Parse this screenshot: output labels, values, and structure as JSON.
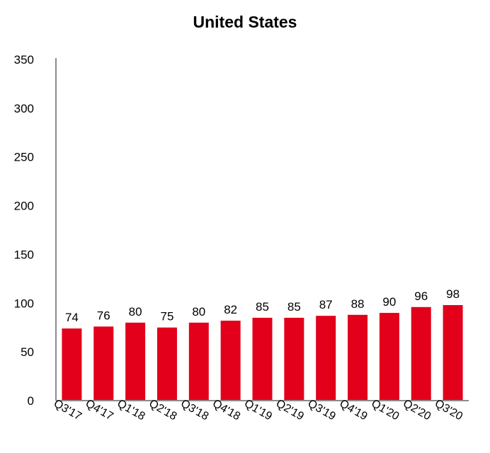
{
  "chart_data": {
    "type": "bar",
    "title": "United States",
    "xlabel": "",
    "ylabel": "",
    "categories": [
      "Q3'17",
      "Q4'17",
      "Q1'18",
      "Q2'18",
      "Q3'18",
      "Q4'18",
      "Q1'19",
      "Q2'19",
      "Q3'19",
      "Q4'19",
      "Q1'20",
      "Q2'20",
      "Q3'20"
    ],
    "values": [
      74,
      76,
      80,
      75,
      80,
      82,
      85,
      85,
      87,
      88,
      90,
      96,
      98
    ],
    "data_labels": [
      "74",
      "76",
      "80",
      "75",
      "80",
      "82",
      "85",
      "85",
      "87",
      "88",
      "90",
      "96",
      "98"
    ],
    "ylim": [
      0,
      350
    ],
    "yticks": [
      0,
      50,
      100,
      150,
      200,
      250,
      300,
      350
    ],
    "ytick_labels": [
      "0",
      "50",
      "100",
      "150",
      "200",
      "250",
      "300",
      "350"
    ],
    "grid": false,
    "legend": "none",
    "bar_color": "#e2001a",
    "axis_color": "#8c8c8c"
  }
}
